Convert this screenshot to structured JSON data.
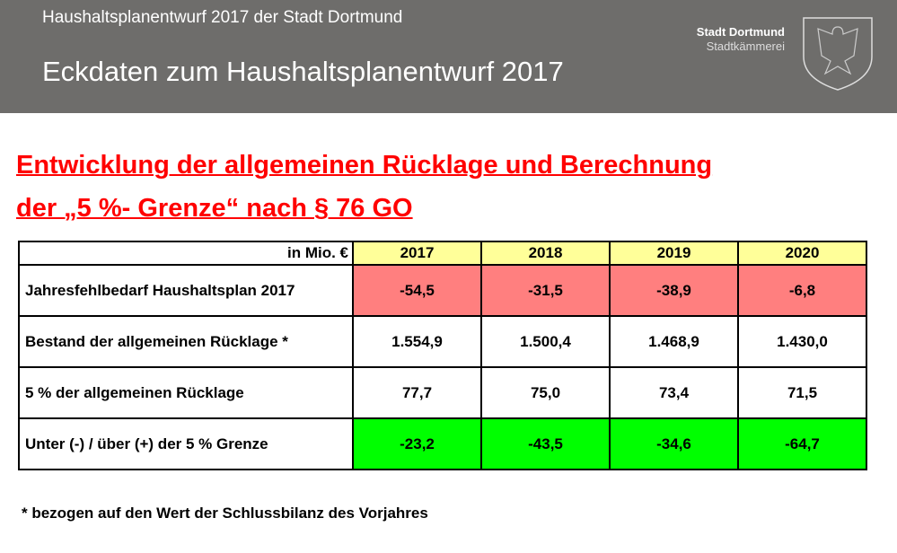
{
  "header": {
    "subtitle": "Haushaltsplanentwurf 2017 der Stadt Dortmund",
    "title": "Eckdaten zum Haushaltsplanentwurf 2017",
    "logo_line1": "Stadt Dortmund",
    "logo_line2": "Stadtkämmerei"
  },
  "heading": {
    "line1": "Entwicklung der allgemeinen Rücklage und Berechnung",
    "line2": "der „5 %- Grenze“ nach § 76 GO"
  },
  "table": {
    "unit": "in Mio. €",
    "years": [
      "2017",
      "2018",
      "2019",
      "2020"
    ],
    "rows": [
      {
        "label": "Jahresfehlbedarf Haushaltsplan 2017",
        "values": [
          "-54,5",
          "-31,5",
          "-38,9",
          "-6,8"
        ]
      },
      {
        "label": "Bestand der allgemeinen Rücklage *",
        "values": [
          "1.554,9",
          "1.500,4",
          "1.468,9",
          "1.430,0"
        ]
      },
      {
        "label": "5 % der allgemeinen Rücklage",
        "values": [
          "77,7",
          "75,0",
          "73,4",
          "71,5"
        ]
      },
      {
        "label": "Unter (-) / über (+) der 5 % Grenze",
        "values": [
          "-23,2",
          "-43,5",
          "-34,6",
          "-64,7"
        ]
      }
    ]
  },
  "footnote": "* bezogen auf den Wert der Schlussbilanz des Vorjahres",
  "colors": {
    "header": "#6e6d6b",
    "heading": "#ff0000",
    "year_bg": "#ffff99",
    "deficit_bg": "#ff7f7f",
    "result_bg": "#00ff00"
  }
}
